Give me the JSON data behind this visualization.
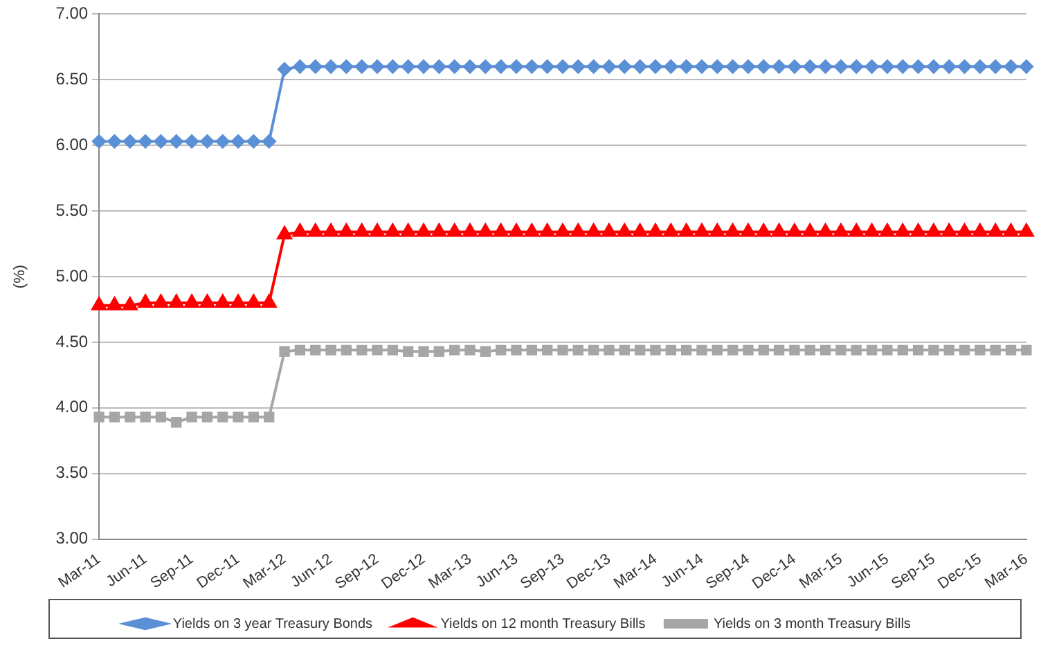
{
  "chart_data": {
    "type": "line",
    "ylabel": "(%)",
    "categories": [
      "Mar-11",
      null,
      null,
      "Jun-11",
      null,
      null,
      "Sep-11",
      null,
      null,
      "Dec-11",
      null,
      null,
      "Mar-12",
      null,
      null,
      "Jun-12",
      null,
      null,
      "Sep-12",
      null,
      null,
      "Dec-12",
      null,
      null,
      "Mar-13",
      null,
      null,
      "Jun-13",
      null,
      null,
      "Sep-13",
      null,
      null,
      "Dec-13",
      null,
      null,
      "Mar-14",
      null,
      null,
      "Jun-14",
      null,
      null,
      "Sep-14",
      null,
      null,
      "Dec-14",
      null,
      null,
      "Mar-15",
      null,
      null,
      "Jun-15",
      null,
      null,
      "Sep-15",
      null,
      null,
      "Dec-15",
      null,
      null,
      "Mar-16"
    ],
    "ylim": [
      3,
      7
    ],
    "yticks": [
      {
        "value": 3,
        "label": "3.00"
      },
      {
        "value": 3.5,
        "label": "3.50"
      },
      {
        "value": 4,
        "label": "4.00"
      },
      {
        "value": 4.5,
        "label": "4.50"
      },
      {
        "value": 5,
        "label": "5.00"
      },
      {
        "value": 5.5,
        "label": "5.50"
      },
      {
        "value": 6,
        "label": "6.00"
      },
      {
        "value": 6.5,
        "label": "6.50"
      },
      {
        "value": 7,
        "label": "7.00"
      }
    ],
    "grid": "y",
    "legend": "bottom",
    "series": [
      {
        "name": "Yields on 3 year Treasury Bonds",
        "color": "#5b8fd6",
        "marker": "diamond",
        "values": [
          6.03,
          6.03,
          6.03,
          6.03,
          6.03,
          6.03,
          6.03,
          6.03,
          6.03,
          6.03,
          6.03,
          6.03,
          6.58,
          6.6,
          6.6,
          6.6,
          6.6,
          6.6,
          6.6,
          6.6,
          6.6,
          6.6,
          6.6,
          6.6,
          6.6,
          6.6,
          6.6,
          6.6,
          6.6,
          6.6,
          6.6,
          6.6,
          6.6,
          6.6,
          6.6,
          6.6,
          6.6,
          6.6,
          6.6,
          6.6,
          6.6,
          6.6,
          6.6,
          6.6,
          6.6,
          6.6,
          6.6,
          6.6,
          6.6,
          6.6,
          6.6,
          6.6,
          6.6,
          6.6,
          6.6,
          6.6,
          6.6,
          6.6,
          6.6,
          6.6,
          6.6
        ]
      },
      {
        "name": "Yields on 12 month Treasury Bills",
        "color": "#ff0000",
        "marker": "triangle",
        "values": [
          4.78,
          4.78,
          4.78,
          4.8,
          4.8,
          4.8,
          4.8,
          4.8,
          4.8,
          4.8,
          4.8,
          4.8,
          5.32,
          5.34,
          5.34,
          5.34,
          5.34,
          5.34,
          5.34,
          5.34,
          5.34,
          5.34,
          5.34,
          5.34,
          5.34,
          5.34,
          5.34,
          5.34,
          5.34,
          5.34,
          5.34,
          5.34,
          5.34,
          5.34,
          5.34,
          5.34,
          5.34,
          5.34,
          5.34,
          5.34,
          5.34,
          5.34,
          5.34,
          5.34,
          5.34,
          5.34,
          5.34,
          5.34,
          5.34,
          5.34,
          5.34,
          5.34,
          5.34,
          5.34,
          5.34,
          5.34,
          5.34,
          5.34,
          5.34,
          5.34,
          5.34
        ]
      },
      {
        "name": "Yields on 3 month Treasury Bills",
        "color": "#a6a6a6",
        "marker": "square",
        "values": [
          3.93,
          3.93,
          3.93,
          3.93,
          3.93,
          3.89,
          3.93,
          3.93,
          3.93,
          3.93,
          3.93,
          3.93,
          4.43,
          4.44,
          4.44,
          4.44,
          4.44,
          4.44,
          4.44,
          4.44,
          4.43,
          4.43,
          4.43,
          4.44,
          4.44,
          4.43,
          4.44,
          4.44,
          4.44,
          4.44,
          4.44,
          4.44,
          4.44,
          4.44,
          4.44,
          4.44,
          4.44,
          4.44,
          4.44,
          4.44,
          4.44,
          4.44,
          4.44,
          4.44,
          4.44,
          4.44,
          4.44,
          4.44,
          4.44,
          4.44,
          4.44,
          4.44,
          4.44,
          4.44,
          4.44,
          4.44,
          4.44,
          4.44,
          4.44,
          4.44,
          4.44
        ]
      }
    ]
  }
}
